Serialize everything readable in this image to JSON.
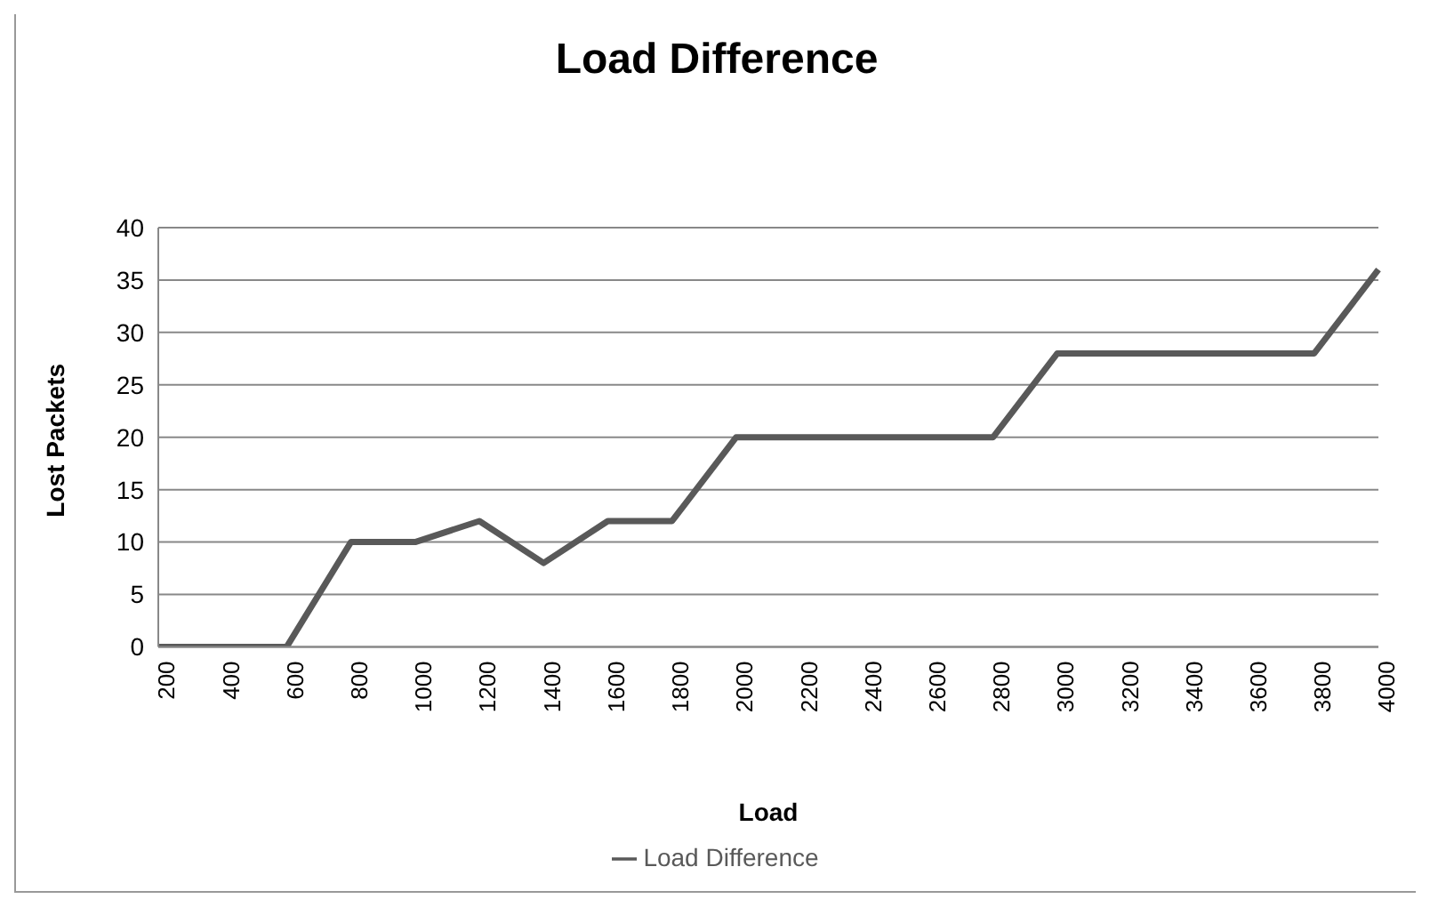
{
  "chart_data": {
    "type": "line",
    "title": "Load Difference",
    "xlabel": "Load",
    "ylabel": "Lost Packets",
    "categories": [
      "200",
      "400",
      "600",
      "800",
      "1000",
      "1200",
      "1400",
      "1600",
      "1800",
      "2000",
      "2200",
      "2400",
      "2600",
      "2800",
      "3000",
      "3200",
      "3400",
      "3600",
      "3800",
      "4000"
    ],
    "series": [
      {
        "name": "Load Difference",
        "color": "#595959",
        "values": [
          0,
          0,
          0,
          10,
          10,
          12,
          8,
          12,
          12,
          20,
          20,
          20,
          20,
          20,
          28,
          28,
          28,
          28,
          28,
          36
        ]
      }
    ],
    "ylim": [
      0,
      40
    ],
    "yticks": [
      0,
      5,
      10,
      15,
      20,
      25,
      30,
      35,
      40
    ],
    "grid": "y",
    "legend": "bottom",
    "marker": "none",
    "line_style": "solid"
  }
}
